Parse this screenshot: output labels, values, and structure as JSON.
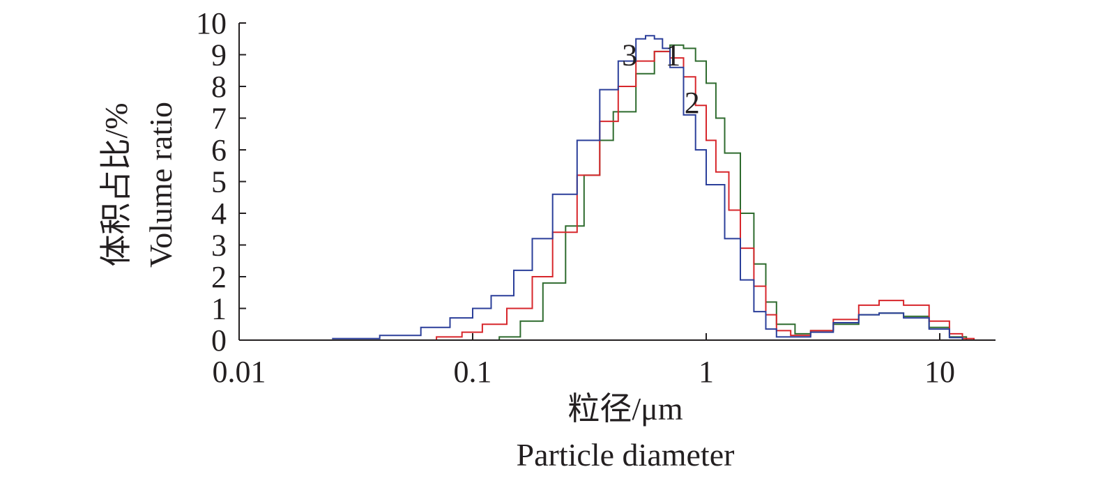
{
  "chart_data": {
    "type": "line",
    "x_scale": "log",
    "xlabel_zh": "粒径/μm",
    "xlabel_en": "Particle diameter",
    "ylabel_zh": "体积占比/%",
    "ylabel_en": "Volume ratio",
    "xlim": [
      0.01,
      16
    ],
    "ylim": [
      0,
      10
    ],
    "x_ticks": [
      0.01,
      0.1,
      1,
      10
    ],
    "x_tick_labels": [
      "0.01",
      "0.1",
      "1",
      "10"
    ],
    "y_ticks": [
      0,
      1,
      2,
      3,
      4,
      5,
      6,
      7,
      8,
      9,
      10
    ],
    "y_tick_labels": [
      "0",
      "1",
      "2",
      "3",
      "4",
      "5",
      "6",
      "7",
      "8",
      "9",
      "10"
    ],
    "grid": false,
    "series": [
      {
        "name": "1",
        "color": "#2e6b2e",
        "x": [
          0.1,
          0.13,
          0.16,
          0.2,
          0.25,
          0.3,
          0.35,
          0.4,
          0.5,
          0.6,
          0.7,
          0.8,
          0.9,
          1.0,
          1.1,
          1.2,
          1.4,
          1.6,
          1.8,
          2.0,
          2.4,
          2.8,
          3.5,
          4.5,
          5.5,
          7,
          9,
          11,
          13
        ],
        "y": [
          0.0,
          0.1,
          0.6,
          1.8,
          3.6,
          5.2,
          6.3,
          7.2,
          8.4,
          9.1,
          9.3,
          9.2,
          8.8,
          8.1,
          7.0,
          5.9,
          4.0,
          2.4,
          1.2,
          0.5,
          0.2,
          0.3,
          0.5,
          0.8,
          0.85,
          0.75,
          0.4,
          0.1,
          0.0
        ]
      },
      {
        "name": "2",
        "color": "#d7262b",
        "x": [
          0.055,
          0.07,
          0.09,
          0.11,
          0.14,
          0.18,
          0.22,
          0.28,
          0.35,
          0.42,
          0.5,
          0.6,
          0.7,
          0.8,
          0.9,
          1.0,
          1.1,
          1.25,
          1.4,
          1.6,
          1.8,
          2.0,
          2.3,
          2.8,
          3.5,
          4.5,
          5.5,
          7,
          9,
          11,
          12.5,
          14
        ],
        "y": [
          0.0,
          0.1,
          0.25,
          0.5,
          1.0,
          2.0,
          3.4,
          5.2,
          6.9,
          8.0,
          8.8,
          9.1,
          8.9,
          8.3,
          7.4,
          6.3,
          5.3,
          4.1,
          2.9,
          1.7,
          0.8,
          0.3,
          0.15,
          0.3,
          0.65,
          1.1,
          1.25,
          1.1,
          0.6,
          0.2,
          0.05,
          0.0
        ]
      },
      {
        "name": "3",
        "color": "#2b3f9a",
        "x": [
          0.025,
          0.04,
          0.06,
          0.08,
          0.1,
          0.12,
          0.15,
          0.18,
          0.22,
          0.28,
          0.35,
          0.42,
          0.5,
          0.55,
          0.6,
          0.65,
          0.7,
          0.8,
          0.9,
          1.0,
          1.2,
          1.4,
          1.6,
          1.8,
          2.0,
          2.4,
          2.8,
          3.5,
          4.5,
          5.5,
          7,
          9,
          11,
          12.5
        ],
        "y": [
          0.05,
          0.15,
          0.4,
          0.7,
          1.0,
          1.4,
          2.2,
          3.2,
          4.6,
          6.3,
          7.9,
          8.8,
          9.5,
          9.6,
          9.5,
          9.2,
          8.6,
          7.1,
          6.0,
          4.9,
          3.2,
          1.9,
          0.9,
          0.35,
          0.1,
          0.1,
          0.25,
          0.55,
          0.8,
          0.85,
          0.7,
          0.35,
          0.08,
          0.0
        ]
      }
    ],
    "curve_labels": [
      {
        "text": "3",
        "x": 0.47,
        "y": 9.0
      },
      {
        "text": "1",
        "x": 0.72,
        "y": 9.0
      },
      {
        "text": "2",
        "x": 0.87,
        "y": 7.5
      }
    ]
  }
}
